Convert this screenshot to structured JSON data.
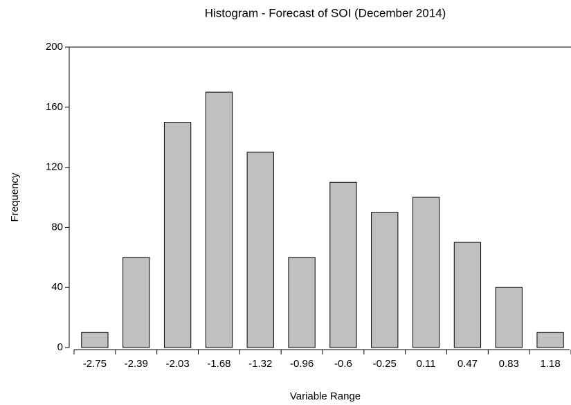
{
  "chart_data": {
    "type": "bar",
    "title": "Histogram - Forecast of SOI (December 2014)",
    "x_label": "Variable Range",
    "y_label": "Frequency",
    "categories": [
      "-2.75",
      "-2.39",
      "-2.03",
      "-1.68",
      "-1.32",
      "-0.96",
      "-0.6",
      "-0.25",
      "0.11",
      "0.47",
      "0.83",
      "1.18"
    ],
    "values": [
      10,
      60,
      150,
      170,
      130,
      60,
      110,
      90,
      100,
      70,
      40,
      10
    ],
    "color": "#c0c0c0",
    "ylim": [
      0,
      200
    ],
    "yticks": [
      0,
      40,
      80,
      120,
      160,
      200
    ],
    "grid": false
  }
}
